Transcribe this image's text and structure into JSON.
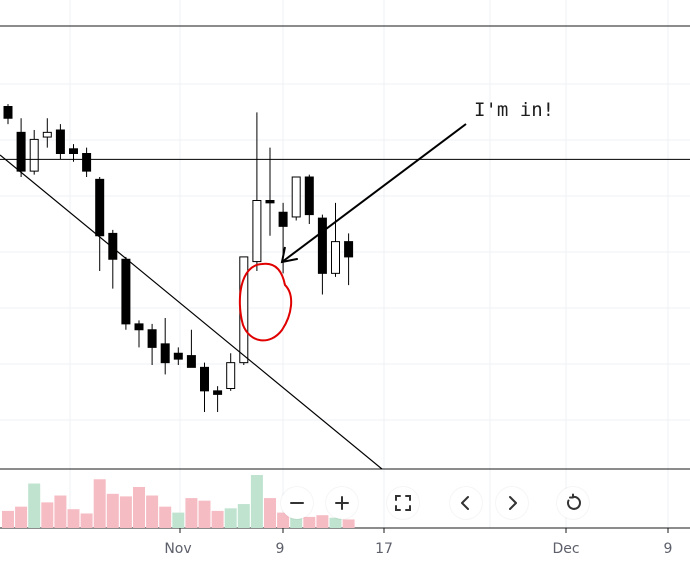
{
  "chart_data": {
    "type": "candlestick",
    "x_ticks": [
      "Nov",
      "9",
      "17",
      "Dec",
      "9"
    ],
    "annotation": "I'm in!",
    "colors": {
      "up_body": "#ffffff",
      "down_body": "#000000",
      "wick": "#000000",
      "volume_up": "#bfe3cf",
      "volume_down": "#f6bcc4",
      "grid": "#eef1f4",
      "line": "#000000",
      "circle": "#e00000"
    },
    "candles": [
      {
        "date": "Oct 21",
        "open": 3.0,
        "high": 3.02,
        "low": 2.85,
        "close": 2.9
      },
      {
        "date": "Oct 22",
        "open": 2.78,
        "high": 2.9,
        "low": 2.4,
        "close": 2.45
      },
      {
        "date": "Oct 23",
        "open": 2.45,
        "high": 2.8,
        "low": 2.42,
        "close": 2.72
      },
      {
        "date": "Oct 24",
        "open": 2.74,
        "high": 2.9,
        "low": 2.65,
        "close": 2.78
      },
      {
        "date": "Oct 25",
        "open": 2.8,
        "high": 2.85,
        "low": 2.55,
        "close": 2.6
      },
      {
        "date": "Oct 28",
        "open": 2.64,
        "high": 2.68,
        "low": 2.53,
        "close": 2.6
      },
      {
        "date": "Oct 29",
        "open": 2.6,
        "high": 2.65,
        "low": 2.4,
        "close": 2.45
      },
      {
        "date": "Oct 30",
        "open": 2.38,
        "high": 2.4,
        "low": 1.6,
        "close": 1.9
      },
      {
        "date": "Oct 31",
        "open": 1.92,
        "high": 1.95,
        "low": 1.45,
        "close": 1.7
      },
      {
        "date": "Nov 1",
        "open": 1.7,
        "high": 1.72,
        "low": 1.1,
        "close": 1.15
      },
      {
        "date": "Nov 4",
        "open": 1.15,
        "high": 1.18,
        "low": 0.95,
        "close": 1.1
      },
      {
        "date": "Nov 5",
        "open": 1.1,
        "high": 1.15,
        "low": 0.8,
        "close": 0.95
      },
      {
        "date": "Nov 6",
        "open": 0.98,
        "high": 1.2,
        "low": 0.72,
        "close": 0.82
      },
      {
        "date": "Nov 7",
        "open": 0.9,
        "high": 0.95,
        "low": 0.8,
        "close": 0.85
      },
      {
        "date": "Nov 8",
        "open": 0.88,
        "high": 1.1,
        "low": 0.78,
        "close": 0.78
      },
      {
        "date": "Nov 11",
        "open": 0.78,
        "high": 0.82,
        "low": 0.4,
        "close": 0.58
      },
      {
        "date": "Nov 12",
        "open": 0.58,
        "high": 0.62,
        "low": 0.4,
        "close": 0.55
      },
      {
        "date": "Nov 13",
        "open": 0.6,
        "high": 0.9,
        "low": 0.58,
        "close": 0.82
      },
      {
        "date": "Nov 14",
        "open": 0.82,
        "high": 1.72,
        "low": 0.8,
        "close": 1.72
      },
      {
        "date": "Nov 15",
        "open": 1.68,
        "high": 2.95,
        "low": 1.6,
        "close": 2.2
      },
      {
        "date": "Nov 18",
        "open": 2.2,
        "high": 2.65,
        "low": 1.9,
        "close": 2.18
      },
      {
        "date": "Nov 19",
        "open": 2.1,
        "high": 2.18,
        "low": 1.58,
        "close": 1.98
      },
      {
        "date": "Nov 20",
        "open": 2.06,
        "high": 2.4,
        "low": 2.03,
        "close": 2.4
      },
      {
        "date": "Nov 21",
        "open": 2.4,
        "high": 2.42,
        "low": 2.0,
        "close": 2.08
      },
      {
        "date": "Nov 22",
        "open": 2.05,
        "high": 2.08,
        "low": 1.4,
        "close": 1.58
      },
      {
        "date": "Nov 25",
        "open": 1.58,
        "high": 2.18,
        "low": 1.55,
        "close": 1.85
      },
      {
        "date": "Nov 26",
        "open": 1.85,
        "high": 1.92,
        "low": 1.48,
        "close": 1.72
      }
    ],
    "volume": [
      {
        "value": 20,
        "up": false
      },
      {
        "value": 25,
        "up": false
      },
      {
        "value": 52,
        "up": true
      },
      {
        "value": 30,
        "up": false
      },
      {
        "value": 38,
        "up": false
      },
      {
        "value": 22,
        "up": false
      },
      {
        "value": 17,
        "up": false
      },
      {
        "value": 57,
        "up": false
      },
      {
        "value": 40,
        "up": false
      },
      {
        "value": 37,
        "up": false
      },
      {
        "value": 48,
        "up": false
      },
      {
        "value": 38,
        "up": false
      },
      {
        "value": 25,
        "up": false
      },
      {
        "value": 18,
        "up": true
      },
      {
        "value": 35,
        "up": false
      },
      {
        "value": 32,
        "up": false
      },
      {
        "value": 20,
        "up": false
      },
      {
        "value": 23,
        "up": true
      },
      {
        "value": 28,
        "up": true
      },
      {
        "value": 62,
        "up": true
      },
      {
        "value": 35,
        "up": false
      },
      {
        "value": 18,
        "up": false
      },
      {
        "value": 20,
        "up": true
      },
      {
        "value": 13,
        "up": false
      },
      {
        "value": 15,
        "up": false
      },
      {
        "value": 12,
        "up": true
      },
      {
        "value": 10,
        "up": false
      }
    ],
    "horizontal_levels": [
      2.55
    ],
    "trendline": {
      "from": {
        "date": "Oct 14",
        "price": 3.45
      },
      "to": {
        "date": "Nov 26",
        "price": 0.0
      }
    },
    "arrow": {
      "from_label": "I'm in!",
      "to_date": "Nov 15",
      "to_price": 2.4
    }
  },
  "controls": [
    {
      "name": "zoom-out-button",
      "icon": "minus-icon"
    },
    {
      "name": "zoom-in-button",
      "icon": "plus-icon"
    },
    {
      "name": "fullscreen-button",
      "icon": "expand-icon"
    },
    {
      "name": "scroll-left-button",
      "icon": "chevron-left-icon"
    },
    {
      "name": "scroll-right-button",
      "icon": "chevron-right-icon"
    },
    {
      "name": "reset-button",
      "icon": "reset-icon"
    }
  ]
}
